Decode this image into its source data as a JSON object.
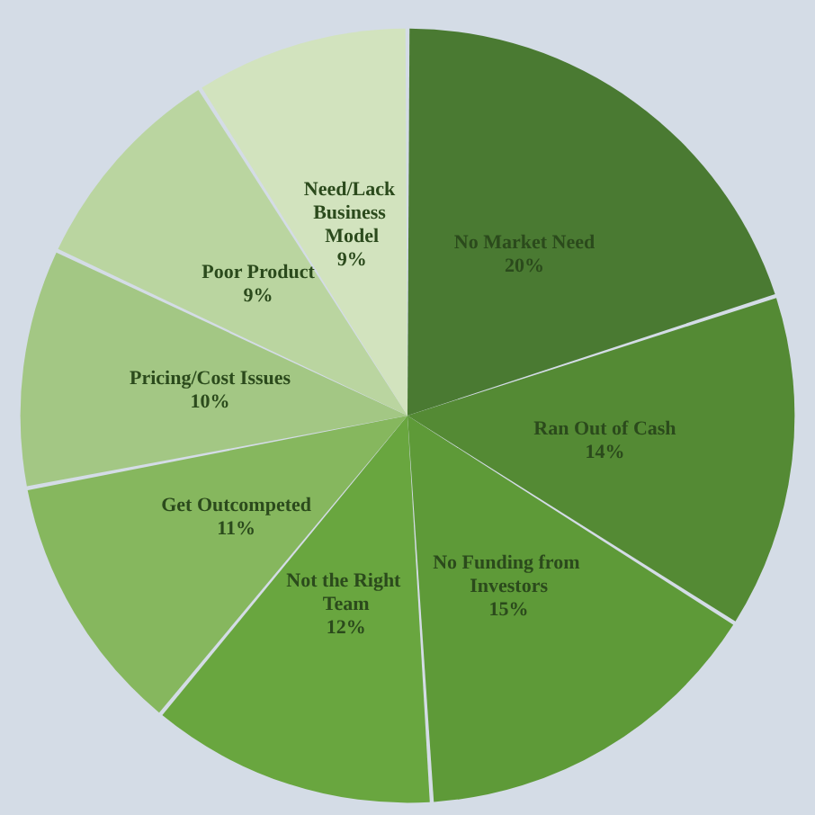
{
  "chart_data": {
    "type": "pie",
    "categories": [
      "No Market Need",
      "Ran Out of Cash",
      "No Funding from Investors",
      "Not the Right Team",
      "Get Outcompeted",
      "Pricing/Cost Issues",
      "Poor Product",
      "Need/Lack Business Model"
    ],
    "values": [
      20,
      14,
      15,
      12,
      11,
      10,
      9,
      9
    ],
    "value_labels": [
      "20%",
      "14%",
      "15%",
      "12%",
      "11%",
      "10%",
      "9%",
      "9%"
    ],
    "colors": [
      "#4a7a32",
      "#548a34",
      "#5e9a38",
      "#69a63f",
      "#86b75e",
      "#a3c784",
      "#bad5a0",
      "#d2e3be"
    ]
  }
}
